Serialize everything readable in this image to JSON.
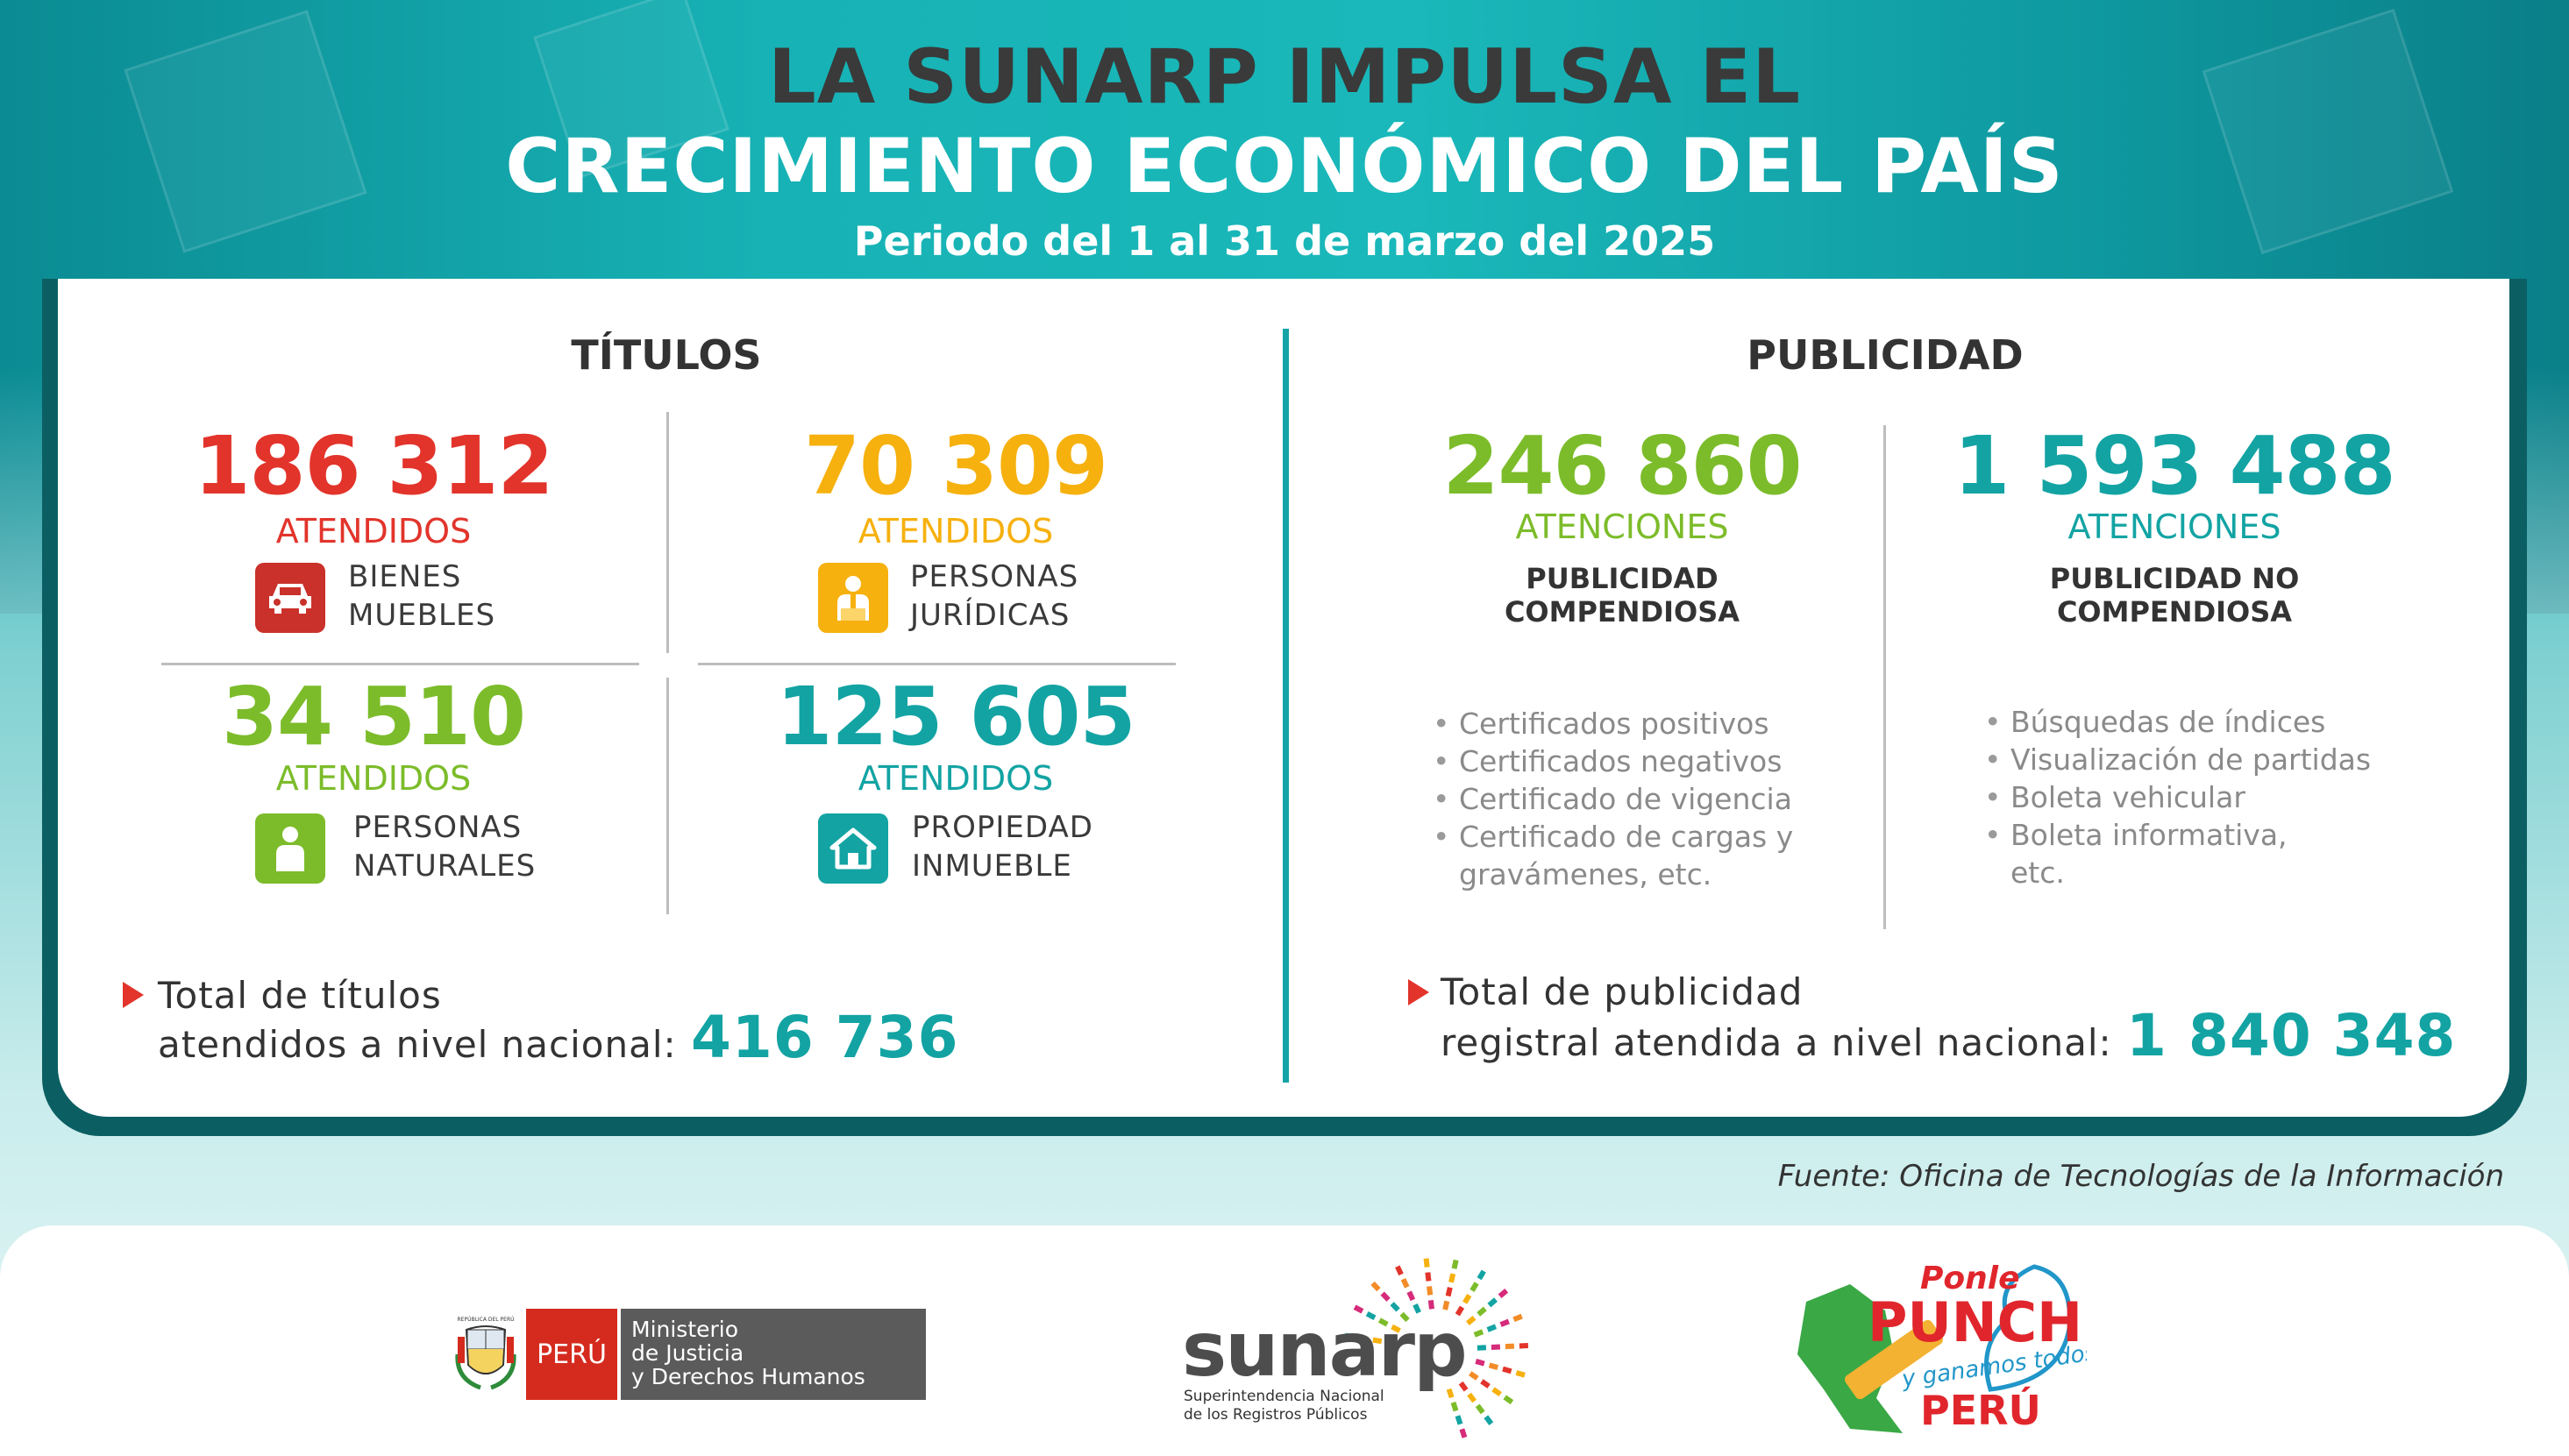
{
  "header": {
    "title_line1": "LA SUNARP IMPULSA EL",
    "title_line2": "CRECIMIENTO ECONÓMICO DEL PAÍS",
    "subtitle": "Periodo del 1 al 31 de marzo del 2025"
  },
  "titulos": {
    "heading": "TÍTULOS",
    "items": [
      {
        "value": "186 312",
        "unit": "ATENDIDOS",
        "label": "BIENES\nMUEBLES",
        "icon": "car-icon",
        "color": "#e2342b"
      },
      {
        "value": "70 309",
        "unit": "ATENDIDOS",
        "label": "PERSONAS\nJURÍDICAS",
        "icon": "business-person-icon",
        "color": "#f6b10f"
      },
      {
        "value": "34 510",
        "unit": "ATENDIDOS",
        "label": "PERSONAS\nNATURALES",
        "icon": "person-icon",
        "color": "#7cbc2a"
      },
      {
        "value": "125 605",
        "unit": "ATENDIDOS",
        "label": "PROPIEDAD\nINMUEBLE",
        "icon": "house-icon",
        "color": "#13a3a3"
      }
    ],
    "total_line1": "Total de títulos",
    "total_line2": "atendidos a nivel nacional:",
    "total_value": "416 736"
  },
  "publicidad": {
    "heading": "PUBLICIDAD",
    "items": [
      {
        "value": "246 860",
        "unit": "ATENCIONES",
        "label_line1": "PUBLICIDAD",
        "label_line2": "COMPENDIOSA",
        "color": "#7cbc2a",
        "bullets": [
          "Certificados positivos",
          "Certificados negativos",
          "Certificado de vigencia",
          "Certificado de cargas y",
          "gravámenes, etc."
        ]
      },
      {
        "value": "1 593 488",
        "unit": "ATENCIONES",
        "label_line1": "PUBLICIDAD NO",
        "label_line2": "COMPENDIOSA",
        "color": "#13a3a3",
        "bullets": [
          "Búsquedas de índices",
          "Visualización de partidas",
          "Boleta vehicular",
          "Boleta informativa,",
          "etc."
        ]
      }
    ],
    "total_line1": "Total de publicidad",
    "total_line2": "registral atendida a nivel nacional:",
    "total_value": "1 840 348"
  },
  "source": "Fuente: Oficina de Tecnologías de la Información",
  "footer": {
    "minjus_peru": "PERÚ",
    "minjus_name": "Ministerio\nde Justicia\ny Derechos Humanos",
    "minjus_seal_text": "REPÚBLICA DEL PERÚ",
    "sunarp_word": "sunarp",
    "sunarp_sub_line1": "Superintendencia Nacional",
    "sunarp_sub_line2": "de los Registros Públicos",
    "campaign_line1": "Ponle",
    "campaign_line2": "PUNCHE",
    "campaign_line3": "y ganamos todos",
    "campaign_line4": "PERÚ"
  },
  "colors": {
    "red": "#e2342b",
    "yellow": "#f6b10f",
    "green": "#7cbc2a",
    "teal": "#13a3a3",
    "dark_teal": "#0b5f63"
  }
}
